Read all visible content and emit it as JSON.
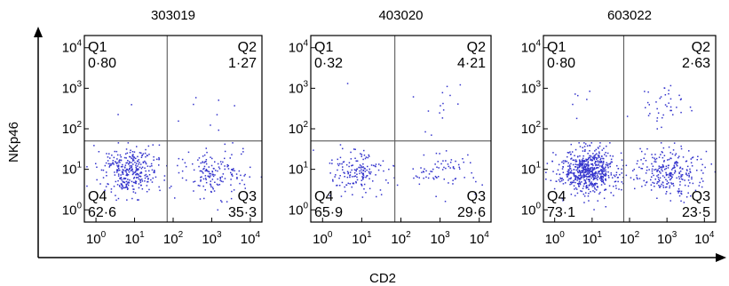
{
  "chart_data": {
    "type": "scatter",
    "xlabel": "CD2",
    "ylabel": "NKp46",
    "axis_scale": "log",
    "xlim": [
      0.5,
      20000
    ],
    "ylim": [
      0.5,
      20000
    ],
    "gate": {
      "x": 70,
      "y": 50
    },
    "tick_labels": {
      "x": [
        {
          "value": 1,
          "label": "10",
          "exp": "0"
        },
        {
          "value": 10,
          "label": "10",
          "exp": "1"
        },
        {
          "value": 100,
          "label": "10",
          "exp": "2"
        },
        {
          "value": 1000,
          "label": "10",
          "exp": "3"
        },
        {
          "value": 10000,
          "label": "10",
          "exp": "4"
        }
      ],
      "y": [
        {
          "value": 1,
          "label": "10",
          "exp": "0"
        },
        {
          "value": 10,
          "label": "10",
          "exp": "1"
        },
        {
          "value": 100,
          "label": "10",
          "exp": "2"
        },
        {
          "value": 1000,
          "label": "10",
          "exp": "3"
        },
        {
          "value": 10000,
          "label": "10",
          "exp": "4"
        }
      ]
    },
    "dot_color": "#3333cc",
    "panels": [
      {
        "title": "303019",
        "quadrants": [
          {
            "name": "Q1",
            "value": "0·80"
          },
          {
            "name": "Q2",
            "value": "1·27"
          },
          {
            "name": "Q3",
            "value": "35·3"
          },
          {
            "name": "Q4",
            "value": "62·6"
          }
        ],
        "approx_event_counts": {
          "Q1": 2,
          "Q2": 8,
          "Q3": 160,
          "Q4": 330
        }
      },
      {
        "title": "403020",
        "quadrants": [
          {
            "name": "Q1",
            "value": "0·32"
          },
          {
            "name": "Q2",
            "value": "4·21"
          },
          {
            "name": "Q3",
            "value": "29·6"
          },
          {
            "name": "Q4",
            "value": "65·9"
          }
        ],
        "approx_event_counts": {
          "Q1": 1,
          "Q2": 14,
          "Q3": 70,
          "Q4": 160
        }
      },
      {
        "title": "603022",
        "quadrants": [
          {
            "name": "Q1",
            "value": "0·80"
          },
          {
            "name": "Q2",
            "value": "2·63"
          },
          {
            "name": "Q3",
            "value": "23·5"
          },
          {
            "name": "Q4",
            "value": "73·1"
          }
        ],
        "approx_event_counts": {
          "Q1": 6,
          "Q2": 40,
          "Q3": 260,
          "Q4": 620
        }
      }
    ]
  }
}
